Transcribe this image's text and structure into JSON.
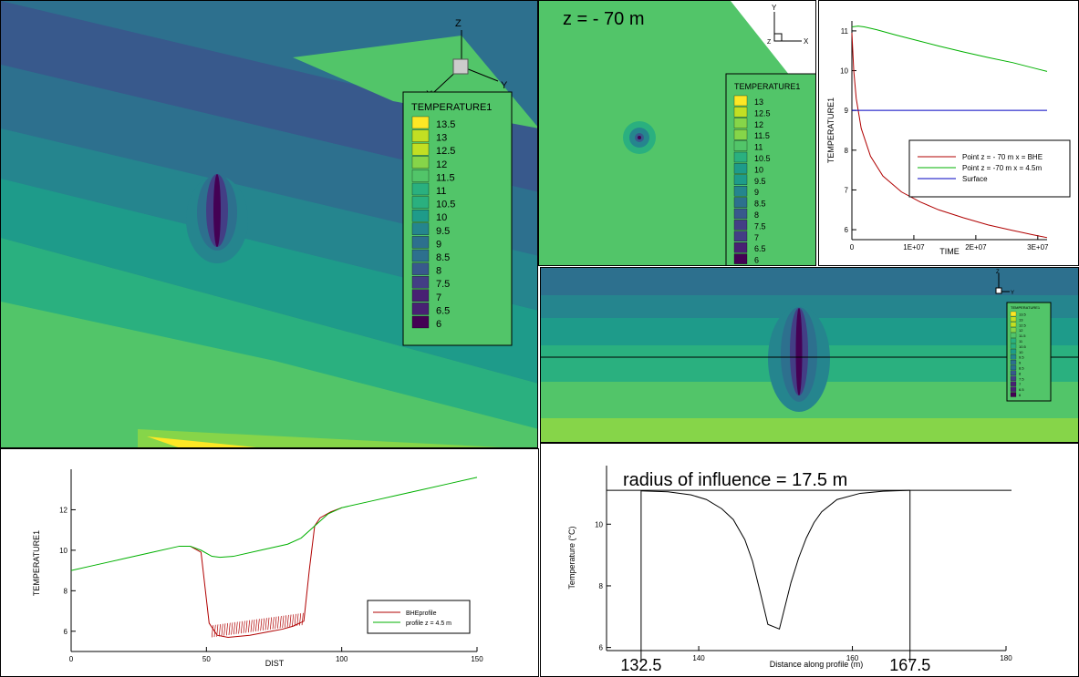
{
  "colors": {
    "palette": [
      "#440154",
      "#482173",
      "#433e85",
      "#38598c",
      "#2d708e",
      "#25858e",
      "#1e9b8a",
      "#2ab07f",
      "#52c569",
      "#86d549",
      "#c2df23",
      "#fde725"
    ],
    "bhe_line": "#b00000",
    "offset_line": "#00b000",
    "surface_line": "#0000c0",
    "radius_line": "#000000"
  },
  "icons": [
    "axis-triad-icon"
  ],
  "panel_3d": {
    "legend_title": "TEMPERATURE1",
    "legend_levels": [
      "13.5",
      "13",
      "12.5",
      "12",
      "11.5",
      "11",
      "10.5",
      "10",
      "9.5",
      "9",
      "8.5",
      "8",
      "7.5",
      "7",
      "6.5",
      "6"
    ],
    "axis_z": "Z",
    "axis_y": "Y",
    "axis_x": "X"
  },
  "panel_plan": {
    "title": "z = - 70 m",
    "legend_title": "TEMPERATURE1",
    "legend_levels": [
      "13",
      "12.5",
      "12",
      "11.5",
      "11",
      "10.5",
      "10",
      "9.5",
      "9",
      "8.5",
      "8",
      "7.5",
      "7",
      "6.5",
      "6"
    ],
    "axis_y": "Y",
    "axis_x": "X",
    "axis_z": "Z"
  },
  "panel_section": {
    "legend_title": "TEMPERATURE1",
    "legend_levels": [
      "13.5",
      "13",
      "12.5",
      "12",
      "11.5",
      "11",
      "10.5",
      "10",
      "9.5",
      "9",
      "8.5",
      "8",
      "7.5",
      "7",
      "6.5",
      "6"
    ],
    "axis_z": "Z",
    "axis_y": "Y"
  },
  "chart_data": [
    {
      "id": "time_series",
      "type": "line",
      "xlabel": "TIME",
      "ylabel": "TEMPERATURE1",
      "xlim": [
        0,
        31500000
      ],
      "ylim": [
        5.75,
        11.25
      ],
      "xticks": [
        0,
        10000000,
        20000000,
        30000000
      ],
      "xtick_labels": [
        "0",
        "1E+07",
        "2E+07",
        "3E+07"
      ],
      "yticks": [
        6,
        7,
        8,
        9,
        10,
        11
      ],
      "series": [
        {
          "name": "Point z = - 70 m x = BHE",
          "color_key": "bhe_line",
          "x": [
            0,
            300000,
            700000,
            1500000,
            3000000,
            5000000,
            8000000,
            11000000,
            14000000,
            18000000,
            22000000,
            26000000,
            29000000,
            31500000
          ],
          "y": [
            10.95,
            10.0,
            9.3,
            8.55,
            7.85,
            7.35,
            6.95,
            6.7,
            6.5,
            6.3,
            6.12,
            5.98,
            5.88,
            5.8
          ]
        },
        {
          "name": "Point z = -70 m  x = 4.5m",
          "color_key": "offset_line",
          "x": [
            0,
            1000000,
            2000000,
            4000000,
            7000000,
            10000000,
            14000000,
            18000000,
            22000000,
            26000000,
            29000000,
            31500000
          ],
          "y": [
            11.1,
            11.12,
            11.1,
            11.03,
            10.9,
            10.78,
            10.62,
            10.47,
            10.33,
            10.2,
            10.08,
            9.98
          ]
        },
        {
          "name": "Surface",
          "color_key": "surface_line",
          "x": [
            0,
            31500000
          ],
          "y": [
            9.0,
            9.0
          ]
        }
      ]
    },
    {
      "id": "profile",
      "type": "line",
      "xlabel": "DIST",
      "ylabel": "TEMPERATURE1",
      "xlim": [
        0,
        150
      ],
      "ylim": [
        5,
        14
      ],
      "xticks": [
        0,
        50,
        100,
        150
      ],
      "yticks": [
        6,
        8,
        10,
        12
      ],
      "series": [
        {
          "name": "BHEprofile",
          "color_key": "bhe_line",
          "x": [
            40,
            44,
            48,
            51,
            54,
            58,
            62,
            66,
            70,
            74,
            78,
            82,
            86,
            88,
            90,
            92,
            96,
            100
          ],
          "y": [
            10.2,
            10.2,
            9.9,
            6.4,
            5.8,
            5.7,
            5.75,
            5.8,
            5.9,
            6.0,
            6.1,
            6.25,
            6.5,
            9.0,
            11.2,
            11.6,
            11.9,
            12.1
          ]
        },
        {
          "name": "profile  z = 4.5 m",
          "color_key": "offset_line",
          "x": [
            0,
            10,
            20,
            30,
            40,
            44,
            48,
            52,
            55,
            60,
            70,
            80,
            85,
            90,
            95,
            100,
            110,
            120,
            130,
            140,
            150
          ],
          "y": [
            9.0,
            9.3,
            9.6,
            9.9,
            10.2,
            10.2,
            10.0,
            9.7,
            9.65,
            9.7,
            10.0,
            10.3,
            10.6,
            11.2,
            11.8,
            12.1,
            12.4,
            12.7,
            13.0,
            13.3,
            13.6
          ]
        }
      ]
    },
    {
      "id": "radius_of_influence",
      "type": "line",
      "title": "radius of influence = 17.5 m",
      "xlabel": "Distance along profile (m)",
      "ylabel": "Temperature (°C)",
      "xlim": [
        128,
        180
      ],
      "ylim": [
        5.9,
        11.9
      ],
      "xticks": [
        140,
        160,
        180
      ],
      "yticks": [
        6,
        8,
        10
      ],
      "reference_level": 11.1,
      "reference_x": [
        132.5,
        167.5
      ],
      "reference_labels": [
        "132.5",
        "167.5"
      ],
      "series": [
        {
          "color_key": "radius_line",
          "x": [
            132.5,
            136,
            139,
            141,
            143,
            144.5,
            146,
            147,
            148,
            149,
            150.5,
            152,
            153,
            154,
            155,
            156,
            158,
            161,
            164,
            167.5
          ],
          "y": [
            11.08,
            11.05,
            10.95,
            10.8,
            10.5,
            10.15,
            9.5,
            8.8,
            7.8,
            6.75,
            6.6,
            8.1,
            8.9,
            9.55,
            10.05,
            10.4,
            10.8,
            11.0,
            11.07,
            11.1
          ]
        }
      ]
    }
  ]
}
